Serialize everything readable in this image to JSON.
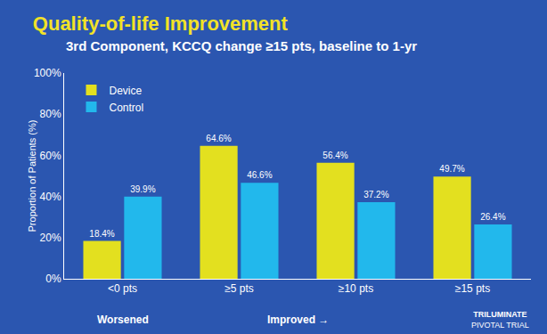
{
  "chart_data": {
    "type": "bar",
    "title": "Quality-of-life Improvement",
    "subtitle": "3rd Component, KCCQ change ≥15 pts, baseline to 1-yr",
    "y_label": "Proportion of Patients (%)",
    "categories": [
      "<0 pts",
      "≥5 pts",
      "≥10 pts",
      "≥15 pts"
    ],
    "series": [
      {
        "name": "Device",
        "color": "#e3e01f",
        "values": [
          18.4,
          64.6,
          56.4,
          49.7
        ],
        "value_labels": [
          "18.4%",
          "64.6%",
          "56.4%",
          "49.7%"
        ]
      },
      {
        "name": "Control",
        "color": "#22b8ec",
        "values": [
          39.9,
          46.6,
          37.2,
          26.4
        ],
        "value_labels": [
          "39.9%",
          "46.6%",
          "37.2%",
          "26.4%"
        ]
      }
    ],
    "ylim": [
      0,
      100
    ],
    "yticks": [
      {
        "value": 0,
        "label": "0%"
      },
      {
        "value": 20,
        "label": "20%"
      },
      {
        "value": 40,
        "label": "40%"
      },
      {
        "value": 60,
        "label": "60%"
      },
      {
        "value": 80,
        "label": "80%"
      },
      {
        "value": 100,
        "label": "100%"
      }
    ],
    "grid": false,
    "legend": "top left",
    "data_labels": true,
    "annotations": [
      "Worsened",
      "Improved →",
      "TRILUMINATE",
      "PIVOTAL TRIAL"
    ]
  }
}
